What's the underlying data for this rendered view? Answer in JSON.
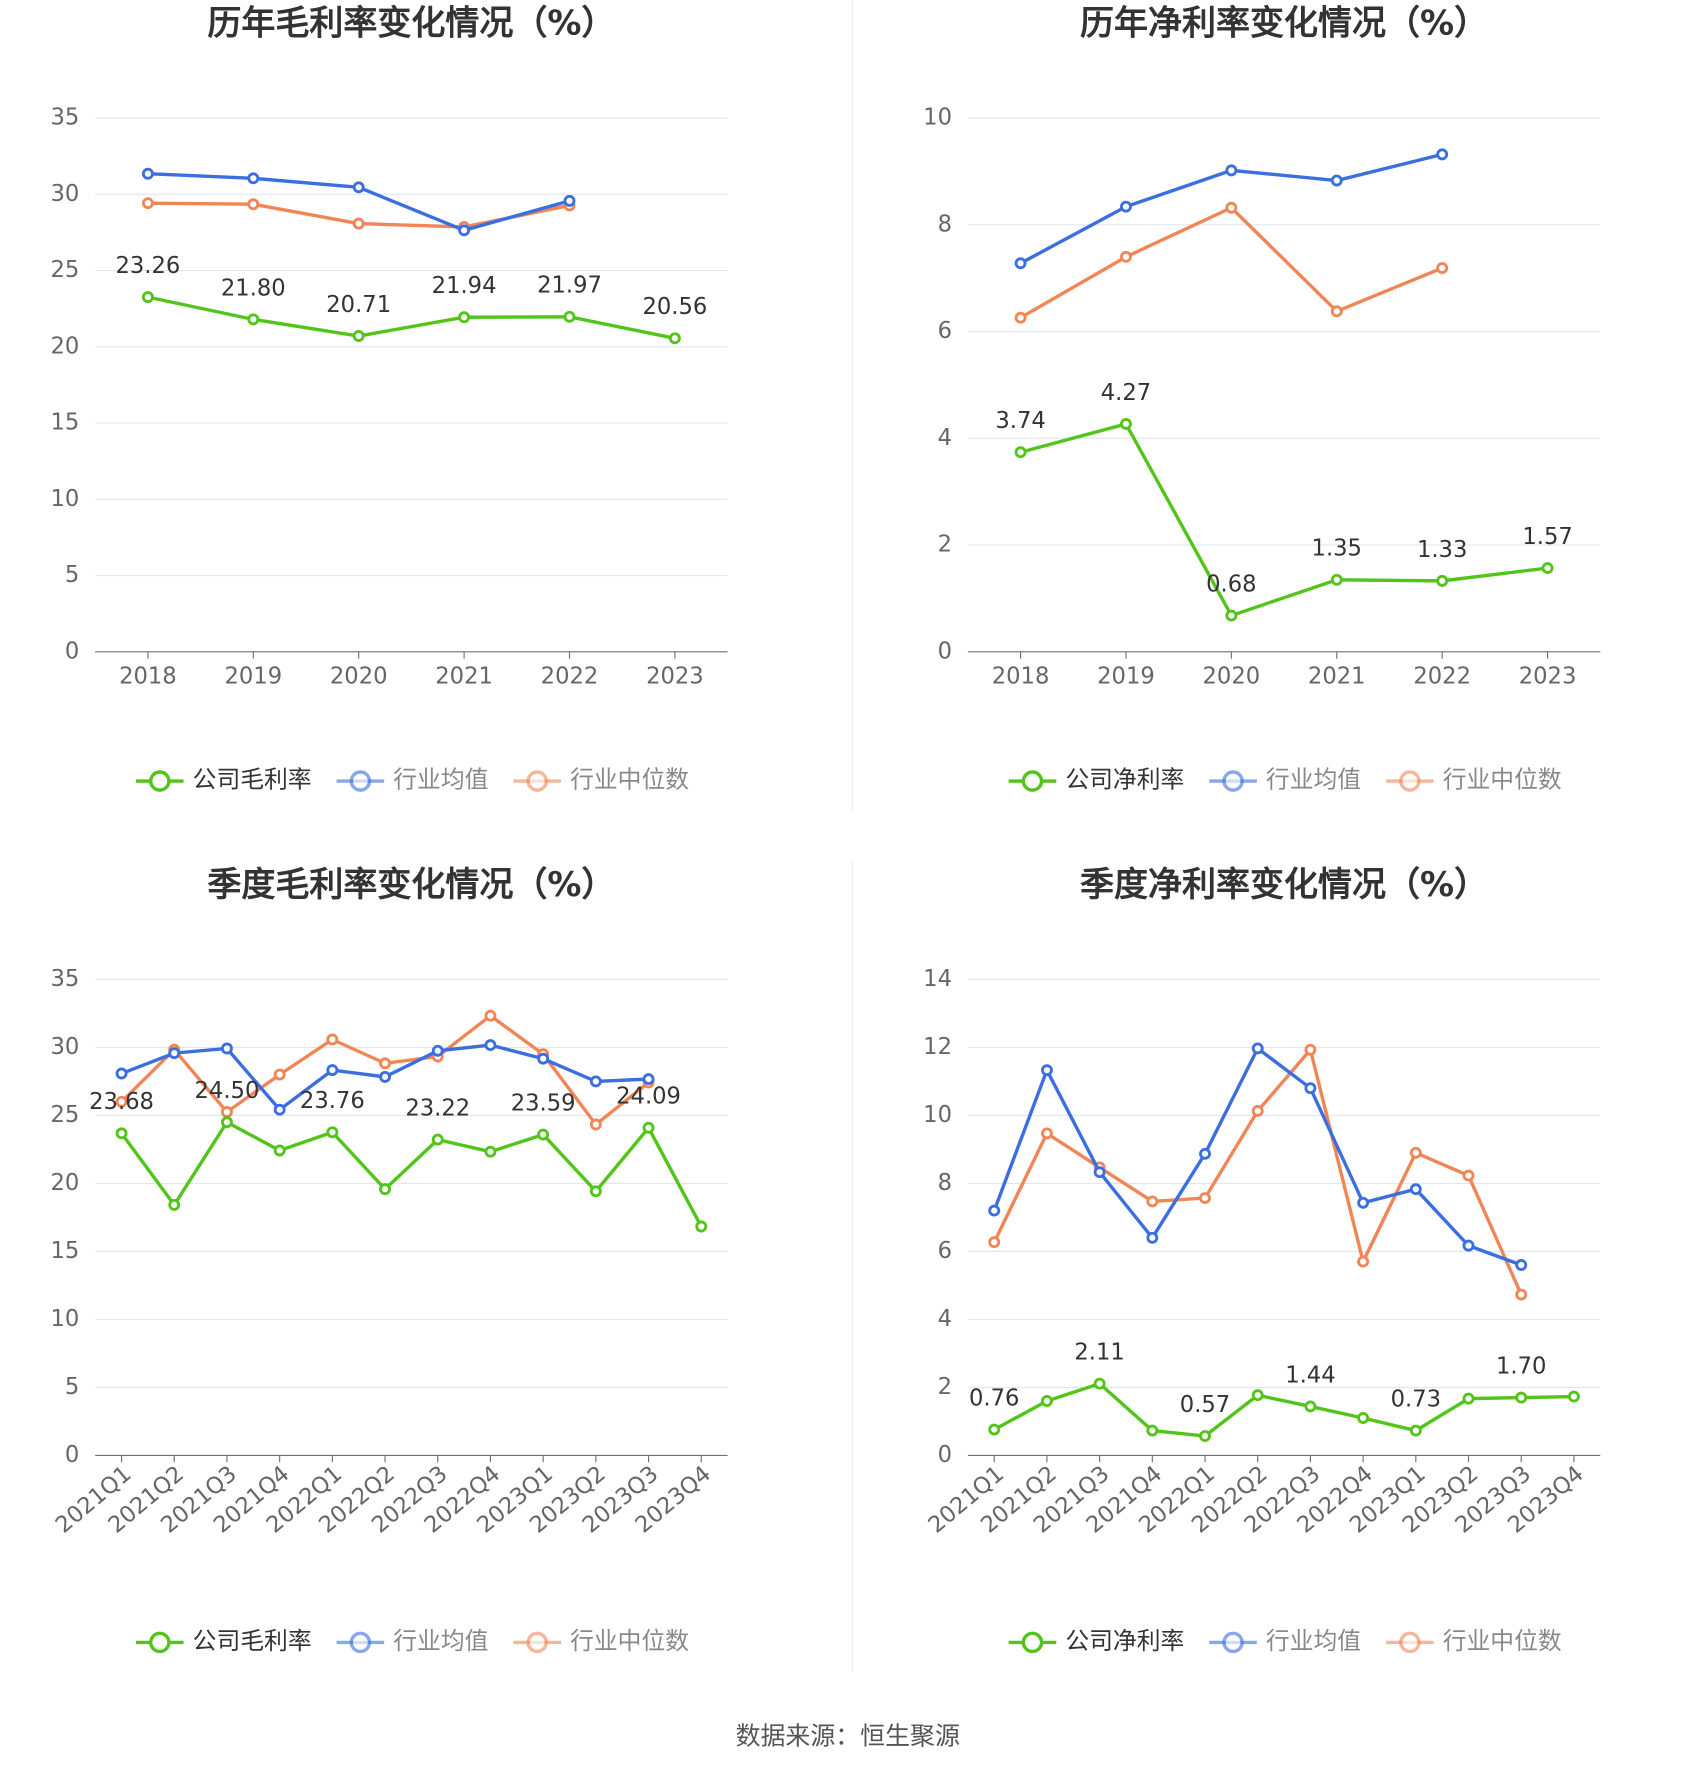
{
  "chart_data": [
    {
      "type": "line",
      "title": "历年毛利率变化情况（%）",
      "categories": [
        "2018",
        "2019",
        "2020",
        "2021",
        "2022",
        "2023"
      ],
      "series": [
        {
          "name": "公司毛利率",
          "color": "#52c41a",
          "values": [
            23.26,
            21.8,
            20.71,
            21.94,
            21.97,
            20.56
          ],
          "value_labels": [
            "23.26",
            "21.80",
            "20.71",
            "21.94",
            "21.97",
            "20.56"
          ]
        },
        {
          "name": "行业均值",
          "color": "#3b6fdf",
          "values": [
            31.35,
            31.05,
            30.46,
            27.64,
            29.57,
            null
          ]
        },
        {
          "name": "行业中位数",
          "color": "#f08656",
          "values": [
            29.42,
            29.35,
            28.08,
            27.86,
            29.27,
            null
          ]
        }
      ],
      "ylim": [
        0,
        35
      ],
      "yticks": [
        0,
        5,
        10,
        15,
        20,
        25,
        30,
        35
      ],
      "grid": true,
      "legend": "bottom"
    },
    {
      "type": "line",
      "title": "历年净利率变化情况（%）",
      "categories": [
        "2018",
        "2019",
        "2020",
        "2021",
        "2022",
        "2023"
      ],
      "series": [
        {
          "name": "公司净利率",
          "color": "#52c41a",
          "values": [
            3.74,
            4.27,
            0.68,
            1.35,
            1.33,
            1.57
          ],
          "value_labels": [
            "3.74",
            "4.27",
            "0.68",
            "1.35",
            "1.33",
            "1.57"
          ]
        },
        {
          "name": "行业均值",
          "color": "#3b6fdf",
          "values": [
            7.28,
            8.34,
            9.02,
            8.83,
            9.32,
            null
          ]
        },
        {
          "name": "行业中位数",
          "color": "#f08656",
          "values": [
            6.26,
            7.4,
            8.32,
            6.38,
            7.19,
            null
          ]
        }
      ],
      "ylim": [
        0,
        10
      ],
      "yticks": [
        0,
        2,
        4,
        6,
        8,
        10
      ],
      "grid": true,
      "legend": "bottom"
    },
    {
      "type": "line",
      "title": "季度毛利率变化情况（%）",
      "categories": [
        "2021Q1",
        "2021Q2",
        "2021Q3",
        "2021Q4",
        "2022Q1",
        "2022Q2",
        "2022Q3",
        "2022Q4",
        "2023Q1",
        "2023Q2",
        "2023Q3",
        "2023Q4"
      ],
      "series": [
        {
          "name": "公司毛利率",
          "color": "#52c41a",
          "values": [
            23.68,
            18.42,
            24.5,
            22.42,
            23.76,
            19.58,
            23.22,
            22.33,
            23.59,
            19.42,
            24.09,
            16.83
          ],
          "value_labels": [
            "23.68",
            null,
            "24.50",
            null,
            "23.76",
            null,
            "23.22",
            null,
            "23.59",
            null,
            "24.09",
            null
          ]
        },
        {
          "name": "行业均值",
          "color": "#3b6fdf",
          "values": [
            28.08,
            29.58,
            29.92,
            25.42,
            28.33,
            27.83,
            29.75,
            30.17,
            29.17,
            27.5,
            27.67,
            null
          ]
        },
        {
          "name": "行业中位数",
          "color": "#f08656",
          "values": [
            26.0,
            29.83,
            25.25,
            28.0,
            30.58,
            28.83,
            29.33,
            32.33,
            29.5,
            24.33,
            27.42,
            null
          ]
        }
      ],
      "ylim": [
        0,
        35
      ],
      "yticks": [
        0,
        5,
        10,
        15,
        20,
        25,
        30,
        35
      ],
      "grid": true,
      "legend": "bottom"
    },
    {
      "type": "line",
      "title": "季度净利率变化情况（%）",
      "categories": [
        "2021Q1",
        "2021Q2",
        "2021Q3",
        "2021Q4",
        "2022Q1",
        "2022Q2",
        "2022Q3",
        "2022Q4",
        "2023Q1",
        "2023Q2",
        "2023Q3",
        "2023Q4"
      ],
      "series": [
        {
          "name": "公司净利率",
          "color": "#52c41a",
          "values": [
            0.76,
            1.6,
            2.11,
            0.73,
            0.57,
            1.77,
            1.44,
            1.1,
            0.73,
            1.67,
            1.7,
            1.73
          ],
          "value_labels": [
            "0.76",
            null,
            "2.11",
            null,
            "0.57",
            null,
            "1.44",
            null,
            "0.73",
            null,
            "1.70",
            null
          ]
        },
        {
          "name": "行业均值",
          "color": "#3b6fdf",
          "values": [
            7.2,
            11.33,
            8.33,
            6.4,
            8.87,
            11.97,
            10.8,
            7.43,
            7.83,
            6.17,
            5.6,
            null
          ]
        },
        {
          "name": "行业中位数",
          "color": "#f08656",
          "values": [
            6.27,
            9.47,
            8.47,
            7.47,
            7.57,
            10.13,
            11.93,
            5.7,
            8.9,
            8.23,
            4.73,
            null
          ]
        }
      ],
      "ylim": [
        0,
        14
      ],
      "yticks": [
        0,
        2,
        4,
        6,
        8,
        10,
        12,
        14
      ],
      "grid": true,
      "legend": "bottom"
    }
  ],
  "source": "数据来源：恒生聚源"
}
